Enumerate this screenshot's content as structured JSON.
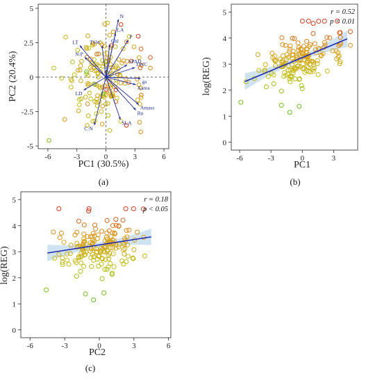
{
  "chart_data": [
    {
      "type": "scatter",
      "variant": "pca-biplot",
      "panel": "(a)",
      "xlabel": "PC1 (30.5%)",
      "ylabel": "PC2 (20.4%)",
      "xlim": [
        -7,
        6.5
      ],
      "ylim": [
        -5.2,
        5.3
      ],
      "xticks": [
        -6,
        -3,
        0,
        3,
        6
      ],
      "yticks": [
        -5,
        -2.5,
        0,
        2.5,
        5
      ],
      "grid": false,
      "reference_lines": "dashed lines at x=0 and y=0",
      "point_style": "hollow circles, color scale green-yellow-orange-red by REG",
      "colors": {
        "low": "#66c21e",
        "mid": "#c8b400",
        "high": "#d9441a",
        "vector": "#1f2a9c"
      },
      "loadings": [
        {
          "label": "N",
          "x": 1.3,
          "y": 4.2
        },
        {
          "label": "LA",
          "x": 1.0,
          "y": 3.2
        },
        {
          "label": "Chl",
          "x": 0.4,
          "y": 2.4
        },
        {
          "label": "TSW",
          "x": -0.4,
          "y": 2.3
        },
        {
          "label": "P",
          "x": 2.3,
          "y": 2.7
        },
        {
          "label": "SPAD",
          "x": 2.2,
          "y": 0.9
        },
        {
          "label": "LWC",
          "x": 3.0,
          "y": 0.7
        },
        {
          "label": "gs",
          "x": 3.6,
          "y": -0.1
        },
        {
          "label": "Aarea",
          "x": 3.1,
          "y": -0.55
        },
        {
          "label": "Amass",
          "x": 3.4,
          "y": -2.0
        },
        {
          "label": "Rn",
          "x": 3.1,
          "y": -2.4
        },
        {
          "label": "SLA",
          "x": 1.5,
          "y": -3.1
        },
        {
          "label": "C:N",
          "x": -1.2,
          "y": -3.5
        },
        {
          "label": "LD",
          "x": -2.3,
          "y": -0.95
        },
        {
          "label": "N:P",
          "x": -2.2,
          "y": 1.45
        },
        {
          "label": "LT",
          "x": -2.7,
          "y": 2.3
        }
      ],
      "point_count_approx": 170
    },
    {
      "type": "scatter",
      "panel": "(b)",
      "xlabel": "PC1",
      "ylabel": "log(REG)",
      "xlim": [
        -6.8,
        5.3
      ],
      "ylim": [
        -0.3,
        5.3
      ],
      "xticks": [
        -6,
        -3,
        0,
        3
      ],
      "yticks": [
        0,
        1,
        2,
        3,
        4,
        5
      ],
      "grid": false,
      "fit": {
        "x": [
          -5.5,
          4.3
        ],
        "y": [
          2.33,
          3.97
        ]
      },
      "stats": {
        "r": "r = 0.52",
        "p": "p < 0.01"
      }
    },
    {
      "type": "scatter",
      "panel": "(c)",
      "xlabel": "PC2",
      "ylabel": "log(REG)",
      "xlim": [
        -6.8,
        6.2
      ],
      "ylim": [
        -0.3,
        5.3
      ],
      "xticks": [
        -6,
        -3,
        0,
        3,
        6
      ],
      "yticks": [
        0,
        1,
        2,
        3,
        4,
        5
      ],
      "grid": false,
      "fit": {
        "x": [
          -4.5,
          4.5
        ],
        "y": [
          2.95,
          3.57
        ]
      },
      "stats": {
        "r": "r = 0.18",
        "p": "p < 0.05"
      }
    }
  ]
}
